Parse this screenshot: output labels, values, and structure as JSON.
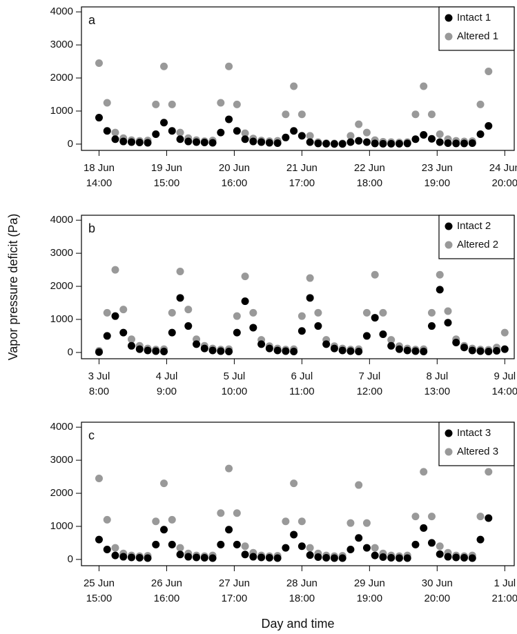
{
  "chart_data": [
    {
      "type": "scatter",
      "panel_label": "a",
      "legend": "upper right",
      "x": [
        "18 Jun 14:00",
        "18 Jun 17:00",
        "18 Jun 20:00",
        "18 Jun 23:00",
        "19 Jun 2:00",
        "19 Jun 5:00",
        "19 Jun 8:00",
        "19 Jun 11:00",
        "19 Jun 14:00",
        "19 Jun 17:00",
        "19 Jun 20:00",
        "19 Jun 23:00",
        "20 Jun 2:00",
        "20 Jun 5:00",
        "20 Jun 8:00",
        "20 Jun 11:00",
        "20 Jun 14:00",
        "20 Jun 17:00",
        "20 Jun 20:00",
        "20 Jun 23:00",
        "21 Jun 2:00",
        "21 Jun 5:00",
        "21 Jun 8:00",
        "21 Jun 11:00",
        "21 Jun 14:00",
        "21 Jun 17:00",
        "21 Jun 20:00",
        "21 Jun 23:00",
        "22 Jun 2:00",
        "22 Jun 5:00",
        "22 Jun 8:00",
        "22 Jun 11:00",
        "22 Jun 14:00",
        "22 Jun 17:00",
        "22 Jun 20:00",
        "22 Jun 23:00",
        "23 Jun 2:00",
        "23 Jun 5:00",
        "23 Jun 8:00",
        "23 Jun 11:00",
        "23 Jun 14:00",
        "23 Jun 17:00",
        "23 Jun 20:00",
        "23 Jun 23:00",
        "24 Jun 2:00",
        "24 Jun 5:00",
        "24 Jun 8:00",
        "24 Jun 11:00",
        "24 Jun 14:00"
      ],
      "series": [
        {
          "name": "Intact 1",
          "color": "#000000",
          "values": [
            800,
            400,
            150,
            80,
            60,
            50,
            40,
            300,
            650,
            400,
            150,
            80,
            60,
            50,
            40,
            350,
            750,
            400,
            150,
            80,
            60,
            40,
            30,
            200,
            400,
            250,
            60,
            20,
            10,
            5,
            5,
            60,
            100,
            60,
            20,
            10,
            10,
            10,
            20,
            150,
            280,
            160,
            60,
            30,
            20,
            20,
            30,
            300,
            550
          ]
        },
        {
          "name": "Altered 1",
          "color": "#999999",
          "values": [
            2450,
            1250,
            350,
            180,
            120,
            100,
            110,
            1200,
            2350,
            1200,
            350,
            180,
            120,
            90,
            110,
            1250,
            2350,
            1200,
            330,
            170,
            110,
            90,
            100,
            900,
            1750,
            900,
            250,
            60,
            30,
            20,
            20,
            250,
            600,
            350,
            120,
            70,
            60,
            50,
            60,
            900,
            1750,
            900,
            300,
            150,
            100,
            80,
            90,
            1200,
            2200
          ]
        }
      ],
      "xlim": [
        "18 Jun 7:30",
        "24 Jun 23:30"
      ],
      "xticks": [
        {
          "value": "18 Jun 14:00",
          "label": [
            "18 Jun",
            "14:00"
          ]
        },
        {
          "value": "19 Jun 15:00",
          "label": [
            "19 Jun",
            "15:00"
          ]
        },
        {
          "value": "20 Jun 16:00",
          "label": [
            "20 Jun",
            "16:00"
          ]
        },
        {
          "value": "21 Jun 17:00",
          "label": [
            "21 Jun",
            "17:00"
          ]
        },
        {
          "value": "22 Jun 18:00",
          "label": [
            "22 Jun",
            "18:00"
          ]
        },
        {
          "value": "23 Jun 19:00",
          "label": [
            "23 Jun",
            "19:00"
          ]
        },
        {
          "value": "24 Jun 20:00",
          "label": [
            "24 Jun",
            "20:00"
          ]
        }
      ],
      "ylim": [
        -190,
        4150
      ],
      "yticks": [
        0,
        1000,
        2000,
        3000,
        4000
      ]
    },
    {
      "type": "scatter",
      "panel_label": "b",
      "legend": "upper right",
      "ylabel": "Vapor pressure deficit (Pa)",
      "x": [
        "3 Jul 8:00",
        "3 Jul 11:00",
        "3 Jul 14:00",
        "3 Jul 17:00",
        "3 Jul 20:00",
        "3 Jul 23:00",
        "4 Jul 2:00",
        "4 Jul 5:00",
        "4 Jul 8:00",
        "4 Jul 11:00",
        "4 Jul 14:00",
        "4 Jul 17:00",
        "4 Jul 20:00",
        "4 Jul 23:00",
        "5 Jul 2:00",
        "5 Jul 5:00",
        "5 Jul 8:00",
        "5 Jul 11:00",
        "5 Jul 14:00",
        "5 Jul 17:00",
        "5 Jul 20:00",
        "5 Jul 23:00",
        "6 Jul 2:00",
        "6 Jul 5:00",
        "6 Jul 8:00",
        "6 Jul 11:00",
        "6 Jul 14:00",
        "6 Jul 17:00",
        "6 Jul 20:00",
        "6 Jul 23:00",
        "7 Jul 2:00",
        "7 Jul 5:00",
        "7 Jul 8:00",
        "7 Jul 11:00",
        "7 Jul 14:00",
        "7 Jul 17:00",
        "7 Jul 20:00",
        "7 Jul 23:00",
        "8 Jul 2:00",
        "8 Jul 5:00",
        "8 Jul 8:00",
        "8 Jul 11:00",
        "8 Jul 14:00",
        "8 Jul 17:00",
        "8 Jul 20:00",
        "8 Jul 23:00",
        "9 Jul 2:00",
        "9 Jul 5:00",
        "9 Jul 8:00",
        "9 Jul 11:00",
        "9 Jul 14:00"
      ],
      "series": [
        {
          "name": "Intact 2",
          "color": "#000000",
          "values": [
            10,
            500,
            1100,
            600,
            200,
            100,
            60,
            40,
            30,
            600,
            1650,
            800,
            250,
            120,
            60,
            40,
            30,
            600,
            1550,
            750,
            250,
            120,
            60,
            40,
            30,
            650,
            1650,
            800,
            250,
            120,
            60,
            40,
            30,
            500,
            1050,
            550,
            200,
            100,
            60,
            40,
            30,
            800,
            1900,
            900,
            300,
            150,
            60,
            40,
            30,
            50,
            100
          ]
        },
        {
          "name": "Altered 2",
          "color": "#999999",
          "values": [
            50,
            1200,
            2500,
            1300,
            400,
            200,
            120,
            90,
            100,
            1200,
            2450,
            1300,
            400,
            200,
            120,
            90,
            100,
            1100,
            2300,
            1200,
            380,
            190,
            120,
            90,
            100,
            1100,
            2250,
            1200,
            380,
            190,
            120,
            90,
            100,
            1200,
            2350,
            1200,
            380,
            190,
            120,
            90,
            100,
            1200,
            2350,
            1250,
            400,
            200,
            120,
            90,
            80,
            150,
            600
          ]
        }
      ],
      "xlim": [
        "3 Jul 1:30",
        "9 Jul 17:30"
      ],
      "xticks": [
        {
          "value": "3 Jul 8:00",
          "label": [
            "3 Jul",
            "8:00"
          ]
        },
        {
          "value": "4 Jul 9:00",
          "label": [
            "4 Jul",
            "9:00"
          ]
        },
        {
          "value": "5 Jul 10:00",
          "label": [
            "5 Jul",
            "10:00"
          ]
        },
        {
          "value": "6 Jul 11:00",
          "label": [
            "6 Jul",
            "11:00"
          ]
        },
        {
          "value": "7 Jul 12:00",
          "label": [
            "7 Jul",
            "12:00"
          ]
        },
        {
          "value": "8 Jul 13:00",
          "label": [
            "8 Jul",
            "13:00"
          ]
        },
        {
          "value": "9 Jul 14:00",
          "label": [
            "9 Jul",
            "14:00"
          ]
        }
      ],
      "ylim": [
        -190,
        4150
      ],
      "yticks": [
        0,
        1000,
        2000,
        3000,
        4000
      ]
    },
    {
      "type": "scatter",
      "panel_label": "c",
      "legend": "upper right",
      "xlabel": "Day and time",
      "x": [
        "25 Jun 15:00",
        "25 Jun 18:00",
        "25 Jun 21:00",
        "26 Jun 0:00",
        "26 Jun 3:00",
        "26 Jun 6:00",
        "26 Jun 9:00",
        "26 Jun 12:00",
        "26 Jun 15:00",
        "26 Jun 18:00",
        "26 Jun 21:00",
        "27 Jun 0:00",
        "27 Jun 3:00",
        "27 Jun 6:00",
        "27 Jun 9:00",
        "27 Jun 12:00",
        "27 Jun 15:00",
        "27 Jun 18:00",
        "27 Jun 21:00",
        "28 Jun 0:00",
        "28 Jun 3:00",
        "28 Jun 6:00",
        "28 Jun 9:00",
        "28 Jun 12:00",
        "28 Jun 15:00",
        "28 Jun 18:00",
        "28 Jun 21:00",
        "29 Jun 0:00",
        "29 Jun 3:00",
        "29 Jun 6:00",
        "29 Jun 9:00",
        "29 Jun 12:00",
        "29 Jun 15:00",
        "29 Jun 18:00",
        "29 Jun 21:00",
        "30 Jun 0:00",
        "30 Jun 3:00",
        "30 Jun 6:00",
        "30 Jun 9:00",
        "30 Jun 12:00",
        "30 Jun 15:00",
        "30 Jun 18:00",
        "30 Jun 21:00",
        "1 Jul 0:00",
        "1 Jul 3:00",
        "1 Jul 6:00",
        "1 Jul 9:00",
        "1 Jul 12:00",
        "1 Jul 15:00"
      ],
      "series": [
        {
          "name": "Intact 3",
          "color": "#000000",
          "values": [
            600,
            300,
            120,
            80,
            60,
            50,
            40,
            450,
            900,
            450,
            150,
            80,
            60,
            50,
            40,
            450,
            900,
            450,
            150,
            80,
            60,
            50,
            40,
            350,
            750,
            400,
            130,
            70,
            50,
            40,
            40,
            300,
            650,
            350,
            120,
            70,
            50,
            40,
            40,
            450,
            950,
            500,
            160,
            80,
            60,
            50,
            40,
            600,
            1250
          ]
        },
        {
          "name": "Altered 3",
          "color": "#999999",
          "values": [
            2450,
            1200,
            350,
            180,
            120,
            100,
            110,
            1150,
            2300,
            1200,
            350,
            180,
            120,
            100,
            120,
            1400,
            2750,
            1400,
            400,
            200,
            120,
            100,
            110,
            1150,
            2300,
            1150,
            350,
            180,
            120,
            100,
            110,
            1100,
            2250,
            1100,
            350,
            180,
            120,
            100,
            120,
            1300,
            2650,
            1300,
            400,
            200,
            120,
            100,
            120,
            1300,
            2650
          ]
        }
      ],
      "xlim": [
        "25 Jun 8:30",
        "2 Jul 0:30"
      ],
      "xticks": [
        {
          "value": "25 Jun 15:00",
          "label": [
            "25 Jun",
            "15:00"
          ]
        },
        {
          "value": "26 Jun 16:00",
          "label": [
            "26 Jun",
            "16:00"
          ]
        },
        {
          "value": "27 Jun 17:00",
          "label": [
            "27 Jun",
            "17:00"
          ]
        },
        {
          "value": "28 Jun 18:00",
          "label": [
            "28 Jun",
            "18:00"
          ]
        },
        {
          "value": "29 Jun 19:00",
          "label": [
            "29 Jun",
            "19:00"
          ]
        },
        {
          "value": "30 Jun 20:00",
          "label": [
            "30 Jun",
            "20:00"
          ]
        },
        {
          "value": "1 Jul 21:00",
          "label": [
            "1 Jul",
            "21:00"
          ]
        }
      ],
      "ylim": [
        -190,
        4150
      ],
      "yticks": [
        0,
        1000,
        2000,
        3000,
        4000
      ]
    }
  ]
}
